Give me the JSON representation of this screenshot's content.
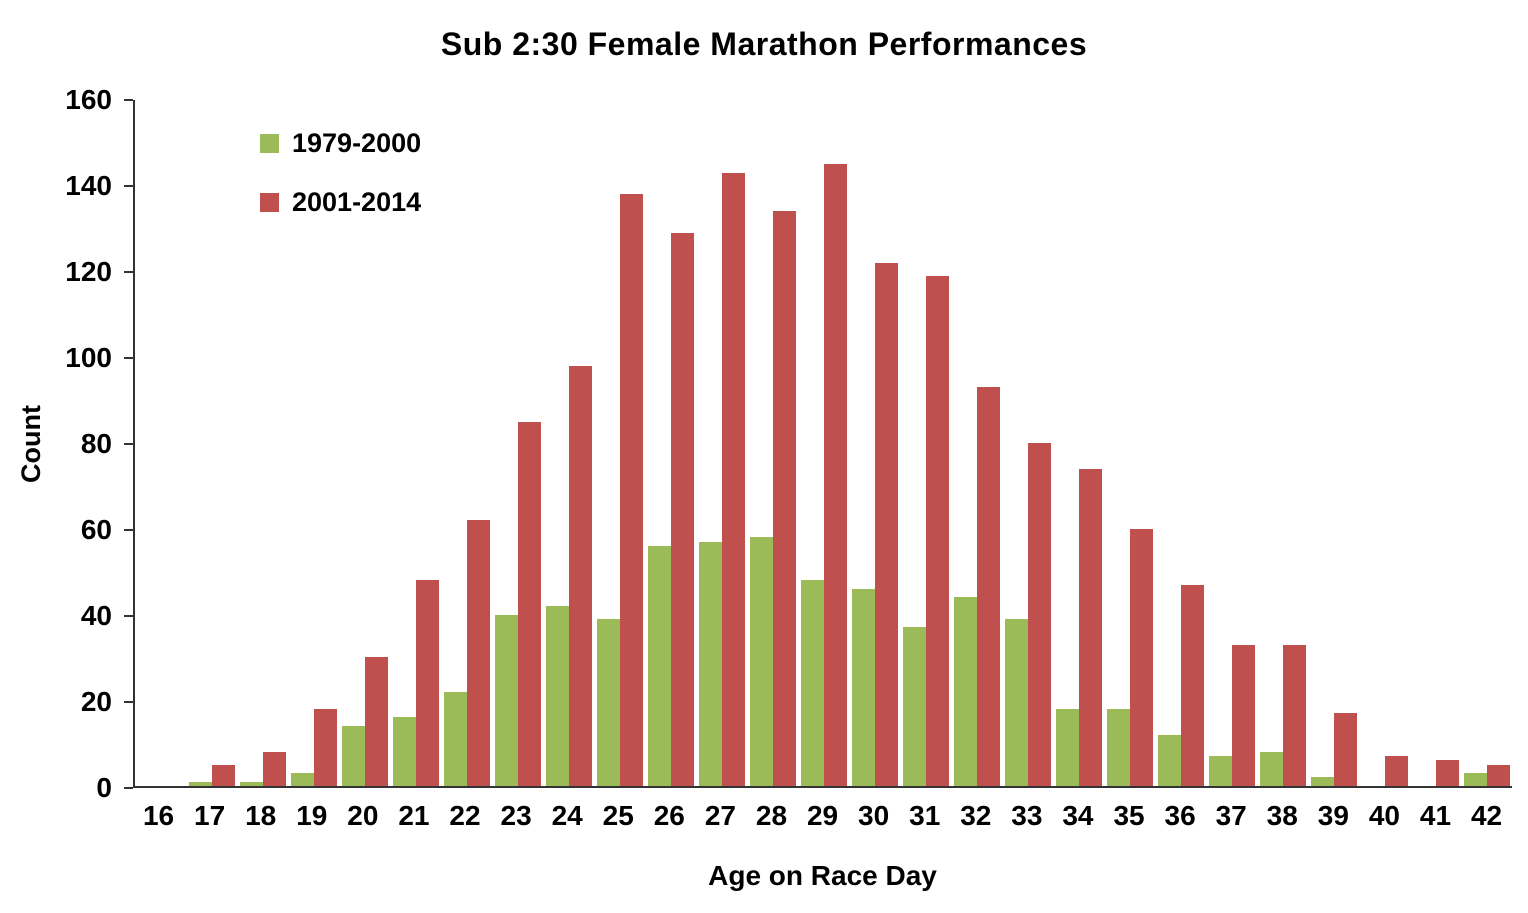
{
  "chart_data": {
    "type": "bar",
    "title": "Sub 2:30 Female Marathon Performances",
    "xlabel": "Age on Race Day",
    "ylabel": "Count",
    "ylim": [
      0,
      160
    ],
    "ytick_step": 20,
    "grid": false,
    "legend_position": "upper-left",
    "categories": [
      16,
      17,
      18,
      19,
      20,
      21,
      22,
      23,
      24,
      25,
      26,
      27,
      28,
      29,
      30,
      31,
      32,
      33,
      34,
      35,
      36,
      37,
      38,
      39,
      40,
      41,
      42
    ],
    "series": [
      {
        "name": "1979-2000",
        "color": "#9BBB59",
        "values": [
          0,
          1,
          1,
          3,
          14,
          16,
          22,
          40,
          42,
          39,
          56,
          57,
          58,
          48,
          46,
          37,
          44,
          39,
          18,
          18,
          12,
          7,
          8,
          2,
          0,
          0,
          3
        ]
      },
      {
        "name": "2001-2014",
        "color": "#C0504D",
        "values": [
          0,
          5,
          8,
          18,
          30,
          48,
          62,
          85,
          98,
          138,
          129,
          143,
          134,
          145,
          122,
          119,
          93,
          80,
          74,
          60,
          47,
          33,
          33,
          17,
          7,
          6,
          5
        ]
      }
    ]
  }
}
